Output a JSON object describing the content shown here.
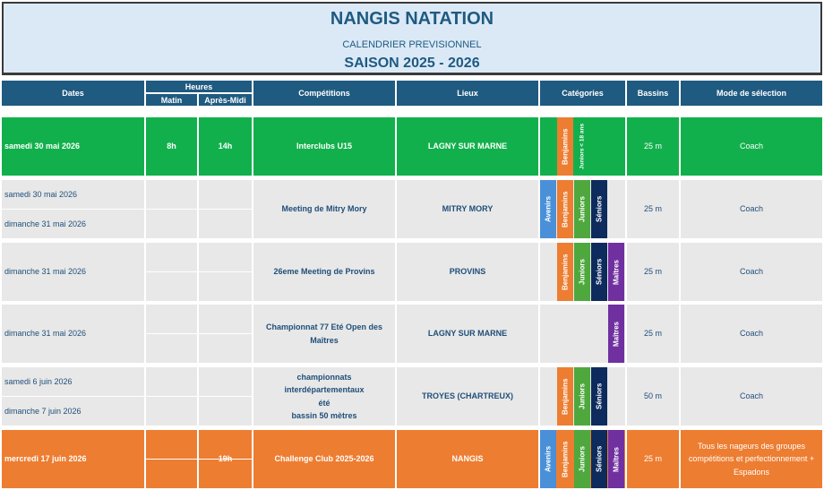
{
  "header": {
    "title": "NANGIS NATATION",
    "subtitle": "CALENDRIER PREVISIONNEL",
    "season": "SAISON 2025 - 2026"
  },
  "columns": {
    "dates": "Dates",
    "heures": "Heures",
    "matin": "Matin",
    "apres_midi": "Après-Midi",
    "competitions": "Compétitions",
    "lieux": "Lieux",
    "categories": "Catégories",
    "bassins": "Bassins",
    "mode": "Mode de sélection"
  },
  "colors": {
    "header": "#1f5a80",
    "green": "#12b04c",
    "gray": "#e8e8e8",
    "orange": "#ed7d31",
    "avenirs": "#4a90d9",
    "benjamins": "#ed7d31",
    "juniors": "#4fa83d",
    "seniors": "#0d2b5c",
    "maitres": "#7030a0"
  },
  "rows": [
    {
      "style": "green",
      "dates": [
        "samedi 30 mai 2026"
      ],
      "matin": "8h",
      "apres_midi": "14h",
      "competition": "Interclubs U15",
      "lieu": "LAGNY SUR MARNE",
      "categories": [
        {
          "slot": 1,
          "label": "Benjamins",
          "color": "benjamins"
        },
        {
          "slot": 2,
          "label": "Juniors < 18 ans",
          "color": "juniors_lbl"
        }
      ],
      "bassin": "25 m",
      "mode": "Coach"
    },
    {
      "style": "gray",
      "dates": [
        "samedi 30 mai 2026",
        "dimanche 31 mai 2026"
      ],
      "matin": "",
      "apres_midi": "",
      "competition": "Meeting de Mitry Mory",
      "lieu": "MITRY MORY",
      "categories": [
        {
          "slot": 0,
          "label": "Avenirs",
          "color": "avenirs"
        },
        {
          "slot": 1,
          "label": "Benjamins",
          "color": "benjamins"
        },
        {
          "slot": 2,
          "label": "Juniors",
          "color": "juniors"
        },
        {
          "slot": 3,
          "label": "Séniors",
          "color": "seniors"
        }
      ],
      "bassin": "25 m",
      "mode": "Coach"
    },
    {
      "style": "gray",
      "dates": [
        "dimanche 31 mai 2026"
      ],
      "matin": "",
      "apres_midi": "",
      "competition": "26eme Meeting de Provins",
      "lieu": "PROVINS",
      "categories": [
        {
          "slot": 1,
          "label": "Benjamins",
          "color": "benjamins"
        },
        {
          "slot": 2,
          "label": "Juniors",
          "color": "juniors"
        },
        {
          "slot": 3,
          "label": "Séniors",
          "color": "seniors"
        },
        {
          "slot": 4,
          "label": "Maîtres",
          "color": "maitres"
        }
      ],
      "bassin": "25 m",
      "mode": "Coach"
    },
    {
      "style": "gray",
      "dates": [
        "dimanche 31 mai 2026"
      ],
      "matin": "",
      "apres_midi": "",
      "competition": "Championnat 77 Eté Open des Maîtres",
      "lieu": "LAGNY SUR MARNE",
      "categories": [
        {
          "slot": 4,
          "label": "Maîtres",
          "color": "maitres"
        }
      ],
      "bassin": "25 m",
      "mode": "Coach"
    },
    {
      "style": "gray",
      "dates": [
        "samedi 6 juin 2026",
        "dimanche 7 juin 2026"
      ],
      "matin": "",
      "apres_midi": "",
      "competition": "championnats interdépartementaux\nété\nbassin 50 mètres",
      "lieu": "TROYES (CHARTREUX)",
      "categories": [
        {
          "slot": 1,
          "label": "Benjamins",
          "color": "benjamins"
        },
        {
          "slot": 2,
          "label": "Juniors",
          "color": "juniors"
        },
        {
          "slot": 3,
          "label": "Séniors",
          "color": "seniors"
        }
      ],
      "bassin": "50 m",
      "mode": "Coach"
    },
    {
      "style": "orange",
      "dates": [
        "mercredi 17 juin 2026"
      ],
      "matin": "",
      "apres_midi": "19h",
      "competition": "Challenge Club 2025-2026",
      "lieu": "NANGIS",
      "categories": [
        {
          "slot": 0,
          "label": "Avenirs",
          "color": "avenirs"
        },
        {
          "slot": 1,
          "label": "Benjamins",
          "color": "benjamins"
        },
        {
          "slot": 2,
          "label": "Juniors",
          "color": "juniors"
        },
        {
          "slot": 3,
          "label": "Séniors",
          "color": "seniors"
        },
        {
          "slot": 4,
          "label": "Maîtres",
          "color": "maitres"
        }
      ],
      "bassin": "25 m",
      "mode": "Tous les nageurs des groupes compétitions et perfectionnement + Espadons"
    }
  ]
}
